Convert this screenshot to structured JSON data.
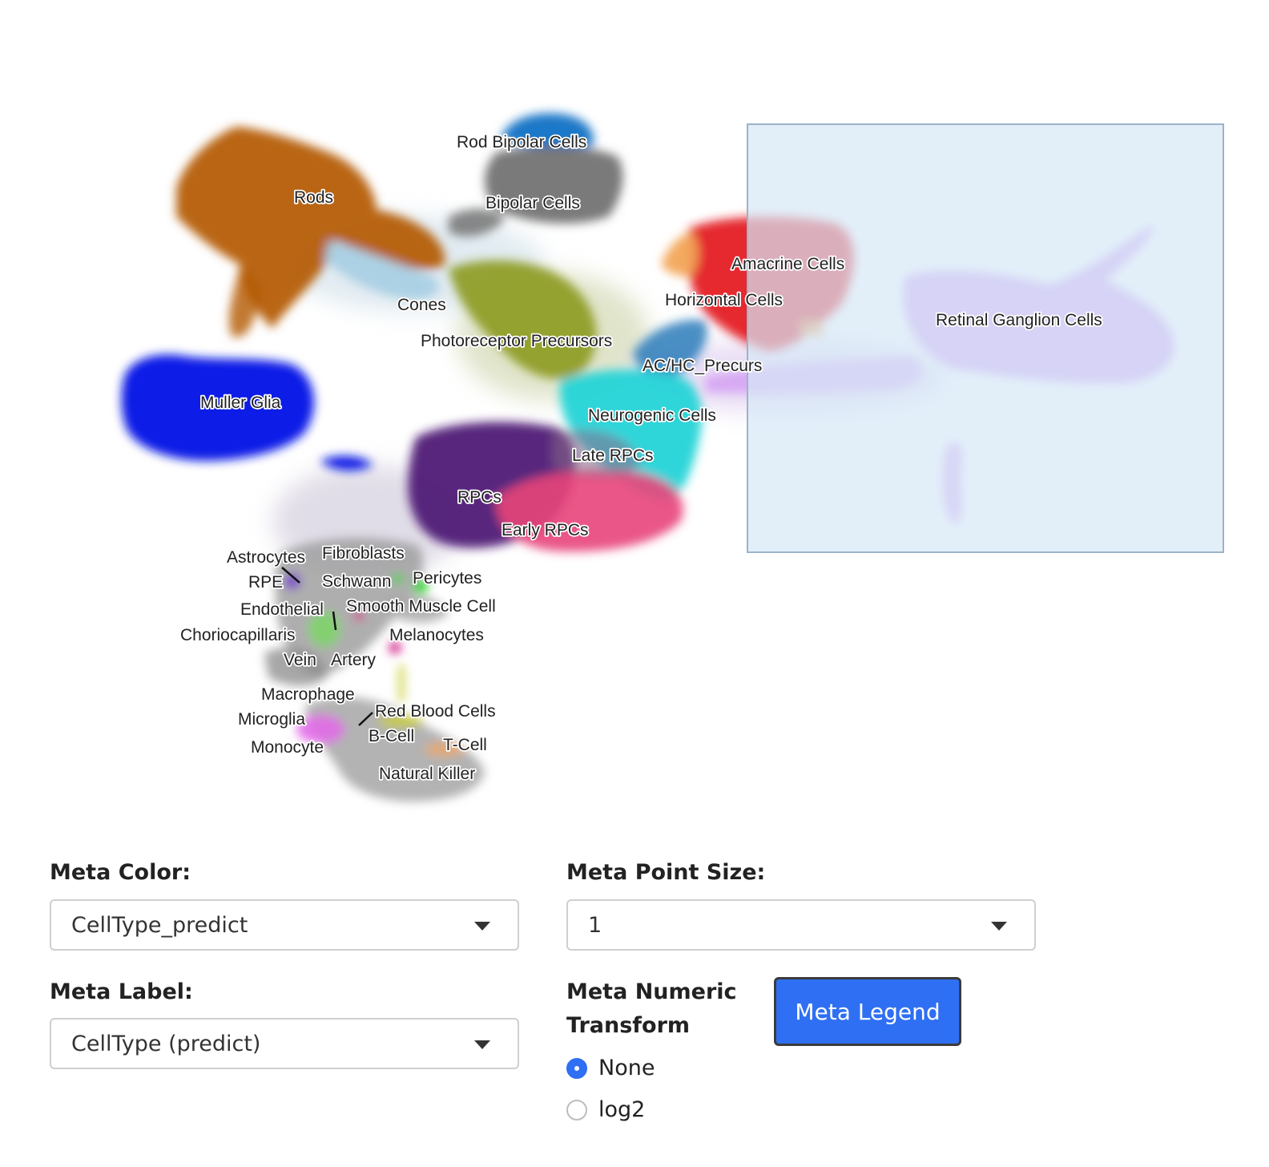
{
  "plot": {
    "cluster_labels": [
      "Rod Bipolar Cells",
      "Rods",
      "Bipolar Cells",
      "Cones",
      "Amacrine Cells",
      "Horizontal Cells",
      "Retinal Ganglion Cells",
      "Photoreceptor Precursors",
      "AC/HC_Precurs",
      "Muller Glia",
      "Neurogenic Cells",
      "Late RPCs",
      "RPCs",
      "Early RPCs",
      "Astrocytes",
      "Fibroblasts",
      "RPE",
      "Schwann",
      "Pericytes",
      "Endothelial",
      "Smooth Muscle Cell",
      "Choriocapillaris",
      "Melanocytes",
      "Vein",
      "Artery",
      "Macrophage",
      "Red Blood Cells",
      "Microglia",
      "B-Cell",
      "T-Cell",
      "Monocyte",
      "Natural Killer"
    ],
    "cluster_colors": {
      "Rods": "#b35806",
      "Rod Bipolar Cells": "#1f78c8",
      "Bipolar Cells": "#6b6b6b",
      "Cones": "#a6cee3",
      "Photoreceptor Precursors": "#8c9a1e",
      "Amacrine Cells": "#e31a1c",
      "Horizontal Cells": "#e31a1c",
      "Retinal Ganglion Cells": "#d39cf2",
      "AC/HC_Precurs": "#2b7bba",
      "Muller Glia": "#0a1ee6",
      "Neurogenic Cells": "#21d3d6",
      "Late RPCs": "#21d3d6",
      "RPCs": "#4b1673",
      "Early RPCs": "#e8447a"
    },
    "selection_box": true
  },
  "controls": {
    "meta_color": {
      "label": "Meta Color:",
      "value": "CellType_predict"
    },
    "meta_point_size": {
      "label": "Meta Point Size:",
      "value": "1"
    },
    "meta_label": {
      "label": "Meta Label:",
      "value": "CellType (predict)"
    },
    "numeric_transform": {
      "label_line1": "Meta Numeric",
      "label_line2": "Transform",
      "options": [
        "None",
        "log2"
      ],
      "selected": "None"
    },
    "legend_button": "Meta Legend"
  }
}
